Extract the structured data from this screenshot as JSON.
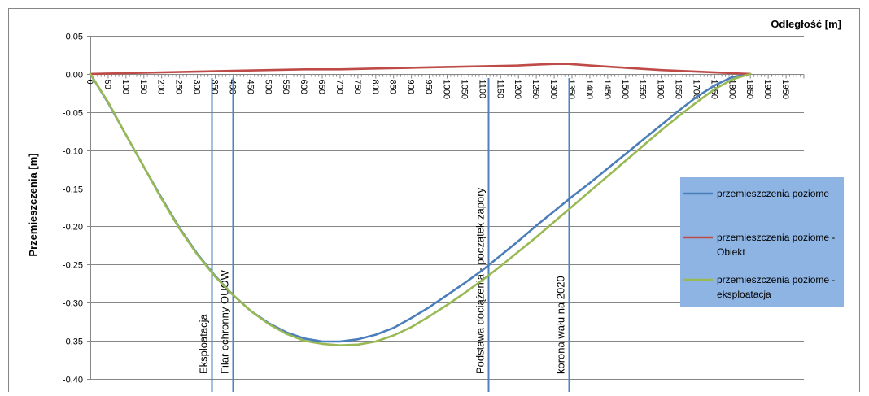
{
  "chart_data": {
    "type": "line",
    "ylabel": "Przemieszczenia  [m]",
    "xlabel": "Odległość [m]",
    "xlim": [
      0,
      2000
    ],
    "ylim": [
      -0.4,
      0.05
    ],
    "x_ticks": [
      0,
      50,
      100,
      150,
      200,
      250,
      300,
      350,
      400,
      450,
      500,
      550,
      600,
      650,
      700,
      750,
      800,
      850,
      900,
      950,
      1000,
      1050,
      1100,
      1150,
      1200,
      1250,
      1300,
      1350,
      1400,
      1450,
      1500,
      1550,
      1600,
      1650,
      1700,
      1750,
      1800,
      1850,
      1900,
      1950
    ],
    "y_ticks": [
      0.05,
      0.0,
      -0.05,
      -0.1,
      -0.15,
      -0.2,
      -0.25,
      -0.3,
      -0.35,
      -0.4
    ],
    "grid": "horizontal",
    "legend_position": "right",
    "legend_bg": "#8eb4e3",
    "series": [
      {
        "name": "przemieszczenia poziome",
        "color": "#4a7ebb",
        "x": [
          0,
          50,
          100,
          150,
          200,
          250,
          300,
          350,
          400,
          450,
          500,
          550,
          600,
          650,
          700,
          750,
          800,
          850,
          900,
          950,
          1000,
          1050,
          1100,
          1150,
          1200,
          1250,
          1300,
          1350,
          1400,
          1450,
          1500,
          1550,
          1600,
          1650,
          1700,
          1750,
          1800,
          1850
        ],
        "y": [
          0.0,
          -0.038,
          -0.08,
          -0.122,
          -0.163,
          -0.202,
          -0.236,
          -0.265,
          -0.29,
          -0.311,
          -0.327,
          -0.339,
          -0.347,
          -0.351,
          -0.351,
          -0.348,
          -0.342,
          -0.333,
          -0.32,
          -0.306,
          -0.29,
          -0.274,
          -0.257,
          -0.238,
          -0.219,
          -0.199,
          -0.18,
          -0.161,
          -0.143,
          -0.124,
          -0.105,
          -0.086,
          -0.067,
          -0.048,
          -0.03,
          -0.015,
          -0.004,
          0.0
        ]
      },
      {
        "name": "przemieszczenia poziome - Obiekt",
        "color": "#be4b48",
        "x": [
          0,
          100,
          200,
          300,
          400,
          500,
          600,
          700,
          800,
          900,
          1000,
          1100,
          1200,
          1250,
          1300,
          1340,
          1400,
          1500,
          1600,
          1700,
          1800,
          1850
        ],
        "y": [
          0.0,
          0.001,
          0.002,
          0.003,
          0.004,
          0.005,
          0.006,
          0.006,
          0.007,
          0.008,
          0.009,
          0.01,
          0.011,
          0.012,
          0.013,
          0.013,
          0.011,
          0.008,
          0.005,
          0.003,
          0.001,
          0.0
        ]
      },
      {
        "name": "przemieszczenia poziome - eksploatacja",
        "color": "#98b954",
        "x": [
          0,
          50,
          100,
          150,
          200,
          250,
          300,
          350,
          400,
          450,
          500,
          550,
          600,
          650,
          700,
          750,
          800,
          850,
          900,
          950,
          1000,
          1050,
          1100,
          1150,
          1200,
          1250,
          1300,
          1350,
          1400,
          1450,
          1500,
          1550,
          1600,
          1650,
          1700,
          1750,
          1800,
          1850
        ],
        "y": [
          0.0,
          -0.037,
          -0.08,
          -0.122,
          -0.164,
          -0.203,
          -0.237,
          -0.266,
          -0.29,
          -0.311,
          -0.328,
          -0.341,
          -0.35,
          -0.354,
          -0.356,
          -0.355,
          -0.351,
          -0.343,
          -0.332,
          -0.318,
          -0.303,
          -0.287,
          -0.27,
          -0.252,
          -0.233,
          -0.214,
          -0.194,
          -0.174,
          -0.154,
          -0.134,
          -0.114,
          -0.094,
          -0.074,
          -0.055,
          -0.037,
          -0.02,
          -0.007,
          0.0
        ]
      }
    ],
    "vertical_markers": [
      {
        "x": 340,
        "label": "Eksploatacja"
      },
      {
        "x": 400,
        "label": "Filar ochronny OUOW"
      },
      {
        "x": 1115,
        "label": "Podstawa dociążenia - początek zapory"
      },
      {
        "x": 1340,
        "label": "korona wału na 2020"
      }
    ],
    "colors": {
      "marker_line": "#4f81bd",
      "grid": "#868686",
      "axis": "#868686",
      "frame": "#868686"
    }
  }
}
